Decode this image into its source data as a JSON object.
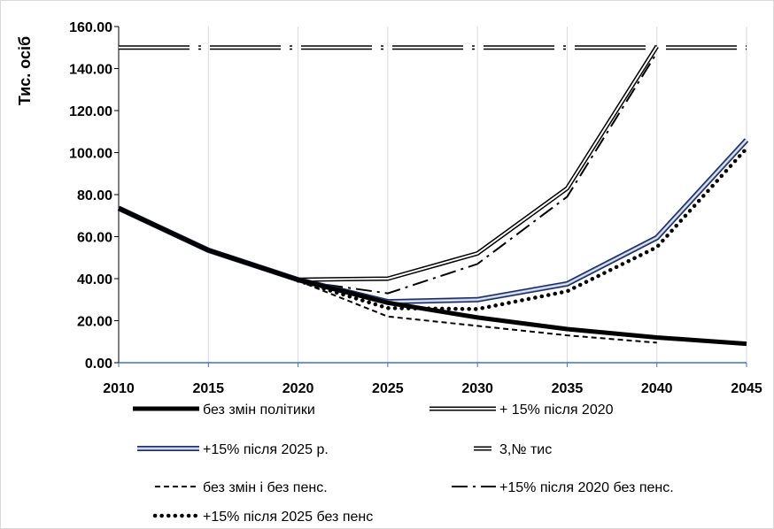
{
  "chart_data": {
    "type": "line",
    "ylabel": "Тис. осіб",
    "xlabel": "",
    "title": "",
    "x": [
      2010,
      2015,
      2020,
      2025,
      2030,
      2035,
      2040,
      2045
    ],
    "x_tick_labels": [
      "2010",
      "2015",
      "2020",
      "2025",
      "2030",
      "2035",
      "2040",
      "2045"
    ],
    "y_tick_labels": [
      "0.00",
      "20.00",
      "40.00",
      "60.00",
      "80.00",
      "100.00",
      "120.00",
      "140.00",
      "160.00"
    ],
    "xlim": [
      2010,
      2045
    ],
    "ylim": [
      0,
      160
    ],
    "grid": "vertical",
    "legend_position": "bottom",
    "series": [
      {
        "name": "без змін політики",
        "style": "thick-solid",
        "points": [
          [
            2010,
            73.5
          ],
          [
            2015,
            53.5
          ],
          [
            2020,
            39.5
          ],
          [
            2025,
            28.5
          ],
          [
            2030,
            21.5
          ],
          [
            2035,
            16
          ],
          [
            2040,
            12
          ],
          [
            2045,
            9
          ]
        ]
      },
      {
        "name": "+ 15% після 2020",
        "style": "double-black",
        "points": [
          [
            2010,
            73.5
          ],
          [
            2015,
            53.5
          ],
          [
            2020,
            39.5
          ],
          [
            2025,
            40
          ],
          [
            2030,
            52
          ],
          [
            2035,
            83
          ],
          [
            2040,
            150.5
          ]
        ]
      },
      {
        "name": "+15% після 2025 р.",
        "style": "double-blue",
        "points": [
          [
            2010,
            73.5
          ],
          [
            2015,
            53.5
          ],
          [
            2020,
            39.5
          ],
          [
            2025,
            29
          ],
          [
            2030,
            30
          ],
          [
            2035,
            37.5
          ],
          [
            2040,
            59.5
          ],
          [
            2045,
            106
          ]
        ]
      },
      {
        "name": "3,№ тис",
        "style": "double-dashdot",
        "dash": "80,10,3,10",
        "points": [
          [
            2010,
            150
          ],
          [
            2045,
            150
          ]
        ]
      },
      {
        "name": "без змін і без пенс.",
        "style": "dashed",
        "points": [
          [
            2020,
            39
          ],
          [
            2025,
            22
          ],
          [
            2030,
            17.5
          ],
          [
            2035,
            13
          ],
          [
            2040,
            9.5
          ]
        ]
      },
      {
        "name": "+15% після 2020 без пенс.",
        "style": "dash-dot",
        "points": [
          [
            2020,
            39
          ],
          [
            2025,
            33
          ],
          [
            2030,
            47
          ],
          [
            2035,
            79
          ],
          [
            2040,
            147.5
          ]
        ]
      },
      {
        "name": "+15% після 2025 без пенс",
        "style": "dotted",
        "points": [
          [
            2020,
            39
          ],
          [
            2025,
            26
          ],
          [
            2030,
            25.5
          ],
          [
            2035,
            34
          ],
          [
            2040,
            55
          ],
          [
            2045,
            102
          ]
        ]
      }
    ]
  }
}
